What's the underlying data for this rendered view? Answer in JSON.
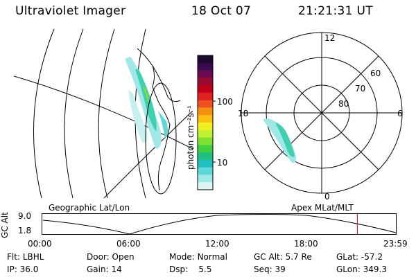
{
  "header": {
    "instrument": "Ultraviolet Imager",
    "date": "18 Oct 07",
    "time": "21:21:31 UT"
  },
  "colorbar": {
    "unit_label": "photon cm⁻²s⁻¹",
    "tick_labels": [
      "100",
      "10"
    ],
    "colors": [
      "#1a0a30",
      "#3a0a50",
      "#6a0a50",
      "#9a0a30",
      "#c00018",
      "#e02020",
      "#f05020",
      "#f59010",
      "#f8c010",
      "#f0f020",
      "#c0f030",
      "#80e030",
      "#40d040",
      "#20c080",
      "#20c0c0",
      "#60d8d8",
      "#a0e8e8",
      "#e0f4f4"
    ]
  },
  "polar_plot": {
    "mlt_labels": {
      "top": "12",
      "bottom": "0",
      "left": "18",
      "right": "6"
    },
    "lat_labels": [
      "60",
      "70",
      "80"
    ]
  },
  "altitude_plot": {
    "left_title": "Geographic Lat/Lon",
    "right_title": "Apex MLat/MLT",
    "y_label": "GC Alt",
    "y_ticks": [
      "9.0",
      "1.8"
    ],
    "x_ticks": [
      "00:00",
      "06:00",
      "12:00",
      "18:00",
      "23:59"
    ],
    "current_time_marker": "21:21",
    "marker_color": "#cc0000"
  },
  "info": {
    "row1": [
      {
        "label": "Flt:",
        "value": "LBHL"
      },
      {
        "label": "Door:",
        "value": "Open"
      },
      {
        "label": "Mode:",
        "value": "Normal"
      },
      {
        "label": "GC Alt:",
        "value": "5.7 Re"
      },
      {
        "label": "GLat:",
        "value": "-57.2"
      }
    ],
    "row2": [
      {
        "label": "IP:",
        "value": "36.0"
      },
      {
        "label": "Gain:",
        "value": "14"
      },
      {
        "label": "Dsp:",
        "value": "5.5"
      },
      {
        "label": "Seq:",
        "value": "39"
      },
      {
        "label": "GLon:",
        "value": "349.3"
      }
    ]
  }
}
